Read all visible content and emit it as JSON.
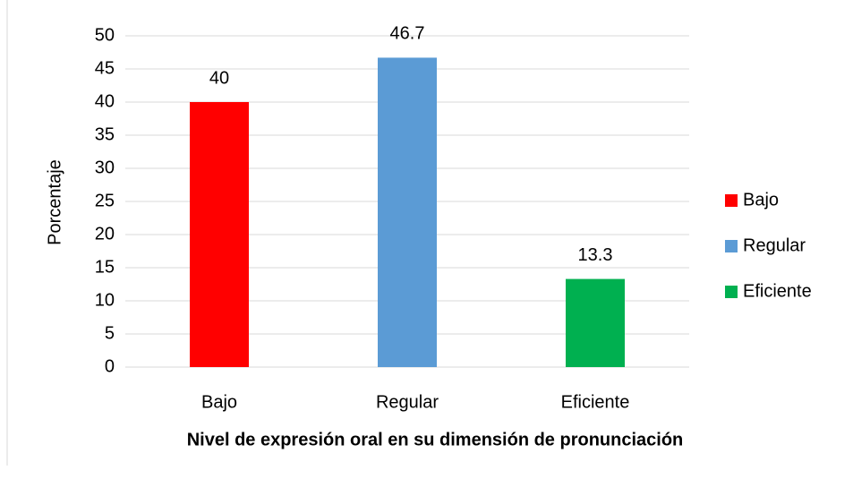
{
  "chart_data": {
    "type": "bar",
    "categories": [
      "Bajo",
      "Regular",
      "Eficiente"
    ],
    "values": [
      40,
      46.7,
      13.3
    ],
    "colors": [
      "#ff0000",
      "#5b9bd5",
      "#00b050"
    ],
    "ylabel": "Porcentaje",
    "xlabel": "Nivel de expresión oral en su dimensión de pronunciación",
    "ylim": [
      0,
      50
    ],
    "yticks": [
      0,
      5,
      10,
      15,
      20,
      25,
      30,
      35,
      40,
      45,
      50
    ],
    "grid": true,
    "legend": "right"
  }
}
